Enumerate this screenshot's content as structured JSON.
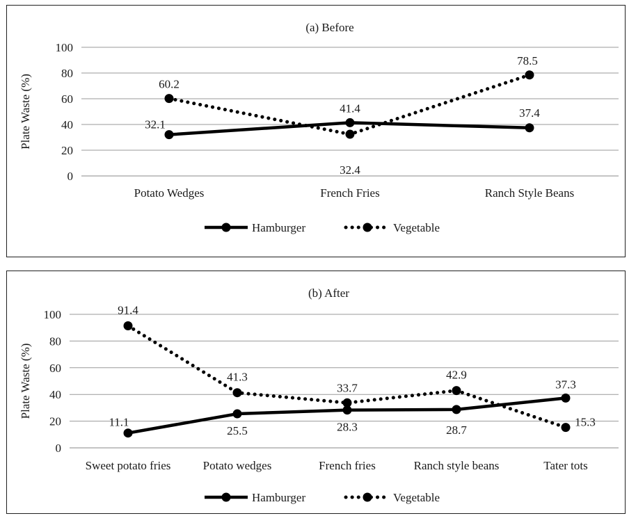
{
  "chart_data": [
    {
      "type": "line",
      "title": "(a) Before",
      "ylabel": "Plate Waste (%)",
      "xlabel": "",
      "ylim": [
        0,
        100
      ],
      "yticks": [
        0,
        20,
        40,
        60,
        80,
        100
      ],
      "grid": true,
      "legend_position": "bottom",
      "categories": [
        "Potato Wedges",
        "French Fries",
        "Ranch Style Beans"
      ],
      "series": [
        {
          "name": "Hamburger",
          "style": "solid",
          "color": "#000000",
          "values": [
            32.1,
            41.4,
            37.4
          ],
          "labels": [
            "32.1",
            "41.4",
            "37.4"
          ]
        },
        {
          "name": "Vegetable",
          "style": "dotted",
          "color": "#000000",
          "values": [
            60.2,
            32.4,
            78.5
          ],
          "labels": [
            "60.2",
            "32.4",
            "78.5"
          ]
        }
      ]
    },
    {
      "type": "line",
      "title": "(b) After",
      "ylabel": "Plate Waste (%)",
      "xlabel": "",
      "ylim": [
        0,
        100
      ],
      "yticks": [
        0,
        20,
        40,
        60,
        80,
        100
      ],
      "grid": true,
      "legend_position": "bottom",
      "categories": [
        "Sweet potato fries",
        "Potato wedges",
        "French fries",
        "Ranch style beans",
        "Tater tots"
      ],
      "series": [
        {
          "name": "Hamburger",
          "style": "solid",
          "color": "#000000",
          "values": [
            11.1,
            25.5,
            28.3,
            28.7,
            37.3
          ],
          "labels": [
            "11.1",
            "25.5",
            "28.3",
            "28.7",
            "37.3"
          ]
        },
        {
          "name": "Vegetable",
          "style": "dotted",
          "color": "#000000",
          "values": [
            91.4,
            41.3,
            33.7,
            42.9,
            15.3
          ],
          "labels": [
            "91.4",
            "41.3",
            "33.7",
            "42.9",
            "15.3"
          ]
        }
      ]
    }
  ]
}
